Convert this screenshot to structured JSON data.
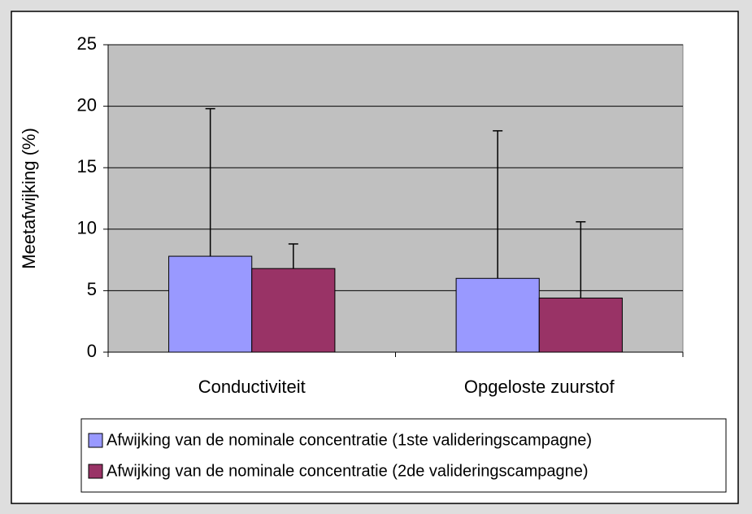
{
  "chart_data": {
    "type": "bar",
    "y_label": "Meetafwijking (%)",
    "categories": [
      "Conductiviteit",
      "Opgeloste zuurstof"
    ],
    "series": [
      {
        "name": "Afwijking van de nominale concentratie (1ste valideringscampagne)",
        "color": "#9999ff",
        "values": [
          7.8,
          6.0
        ],
        "errors": [
          12.0,
          12.0
        ]
      },
      {
        "name": "Afwijking van de nominale concentratie (2de valideringscampagne)",
        "color": "#993366",
        "values": [
          6.8,
          4.4
        ],
        "errors": [
          2.0,
          6.2
        ]
      }
    ],
    "ylim": [
      0,
      25
    ],
    "yticks": [
      0,
      5,
      10,
      15,
      20,
      25
    ],
    "grid": true,
    "plot_background": "#c0c0c0"
  }
}
